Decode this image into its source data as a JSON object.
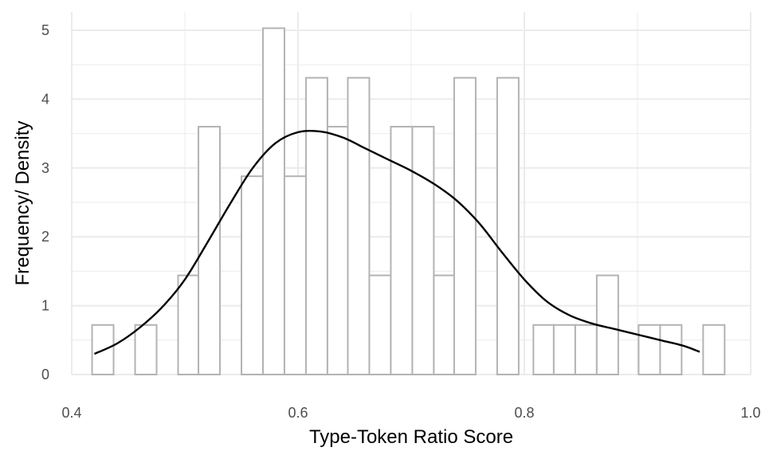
{
  "chart_data": {
    "type": "bar",
    "subtype": "histogram-with-density",
    "title": "",
    "xlabel": "Type-Token Ratio Score",
    "ylabel": "Frequency/ Density",
    "xlim": [
      0.4,
      1.0
    ],
    "ylim": [
      0,
      5.2
    ],
    "xticks": [
      0.4,
      0.6,
      0.8,
      1.0
    ],
    "xtick_labels": [
      "0.4",
      "0.6",
      "0.8",
      "1.0"
    ],
    "yticks": [
      0,
      1,
      2,
      3,
      4,
      5
    ],
    "ytick_labels": [
      "0",
      "1",
      "2",
      "3",
      "4",
      "5"
    ],
    "grid": true,
    "legend": "none",
    "colors": {
      "bar_outline": "#b3b3b3",
      "bar_fill": "#ffffff",
      "density": "#000000",
      "grid": "#ebebeb"
    },
    "bins": [
      {
        "x0": 0.418,
        "x1": 0.437,
        "value": 0.72
      },
      {
        "x0": 0.437,
        "x1": 0.456,
        "value": 0
      },
      {
        "x0": 0.456,
        "x1": 0.475,
        "value": 0.72
      },
      {
        "x0": 0.475,
        "x1": 0.494,
        "value": 0
      },
      {
        "x0": 0.494,
        "x1": 0.512,
        "value": 1.44
      },
      {
        "x0": 0.512,
        "x1": 0.531,
        "value": 3.6
      },
      {
        "x0": 0.531,
        "x1": 0.55,
        "value": 0
      },
      {
        "x0": 0.55,
        "x1": 0.569,
        "value": 2.88
      },
      {
        "x0": 0.569,
        "x1": 0.588,
        "value": 5.03
      },
      {
        "x0": 0.588,
        "x1": 0.607,
        "value": 2.88
      },
      {
        "x0": 0.607,
        "x1": 0.626,
        "value": 4.31
      },
      {
        "x0": 0.626,
        "x1": 0.644,
        "value": 3.6
      },
      {
        "x0": 0.644,
        "x1": 0.663,
        "value": 4.31
      },
      {
        "x0": 0.663,
        "x1": 0.682,
        "value": 1.44
      },
      {
        "x0": 0.682,
        "x1": 0.701,
        "value": 3.6
      },
      {
        "x0": 0.701,
        "x1": 0.72,
        "value": 3.6
      },
      {
        "x0": 0.72,
        "x1": 0.738,
        "value": 1.44
      },
      {
        "x0": 0.738,
        "x1": 0.757,
        "value": 4.31
      },
      {
        "x0": 0.757,
        "x1": 0.776,
        "value": 0
      },
      {
        "x0": 0.776,
        "x1": 0.795,
        "value": 4.31
      },
      {
        "x0": 0.795,
        "x1": 0.808,
        "value": 0
      },
      {
        "x0": 0.808,
        "x1": 0.826,
        "value": 0.72
      },
      {
        "x0": 0.826,
        "x1": 0.845,
        "value": 0.72
      },
      {
        "x0": 0.845,
        "x1": 0.864,
        "value": 0.72
      },
      {
        "x0": 0.864,
        "x1": 0.883,
        "value": 1.44
      },
      {
        "x0": 0.883,
        "x1": 0.901,
        "value": 0
      },
      {
        "x0": 0.901,
        "x1": 0.92,
        "value": 0.72
      },
      {
        "x0": 0.92,
        "x1": 0.939,
        "value": 0.72
      },
      {
        "x0": 0.939,
        "x1": 0.958,
        "value": 0
      },
      {
        "x0": 0.958,
        "x1": 0.977,
        "value": 0.72
      }
    ],
    "density": {
      "x": [
        0.42,
        0.44,
        0.46,
        0.48,
        0.5,
        0.52,
        0.54,
        0.56,
        0.58,
        0.6,
        0.62,
        0.64,
        0.66,
        0.68,
        0.7,
        0.72,
        0.74,
        0.76,
        0.78,
        0.8,
        0.82,
        0.84,
        0.86,
        0.88,
        0.9,
        0.92,
        0.94,
        0.955
      ],
      "y": [
        0.3,
        0.45,
        0.68,
        0.98,
        1.38,
        1.92,
        2.48,
        3.0,
        3.36,
        3.52,
        3.53,
        3.44,
        3.28,
        3.12,
        2.96,
        2.77,
        2.53,
        2.2,
        1.78,
        1.38,
        1.06,
        0.86,
        0.74,
        0.66,
        0.58,
        0.5,
        0.42,
        0.33
      ]
    }
  }
}
